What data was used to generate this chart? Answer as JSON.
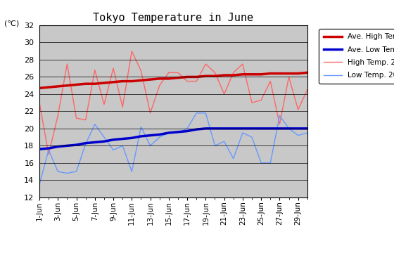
{
  "title": "Tokyo Temperature in June",
  "ylabel": "(℃)",
  "ylim": [
    12,
    32
  ],
  "yticks": [
    12,
    14,
    16,
    18,
    20,
    22,
    24,
    26,
    28,
    30,
    32
  ],
  "background_color": "#c8c8c8",
  "days": [
    1,
    2,
    3,
    4,
    5,
    6,
    7,
    8,
    9,
    10,
    11,
    12,
    13,
    14,
    15,
    16,
    17,
    18,
    19,
    20,
    21,
    22,
    23,
    24,
    25,
    26,
    27,
    28,
    29,
    30
  ],
  "xtick_labels": [
    "1-Jun",
    "3-Jun",
    "5-Jun",
    "7-Jun",
    "9-Jun",
    "11-Jun",
    "13-Jun",
    "15-Jun",
    "17-Jun",
    "19-Jun",
    "21-Jun",
    "23-Jun",
    "25-Jun",
    "27-Jun",
    "29-Jun"
  ],
  "xtick_positions": [
    1,
    3,
    5,
    7,
    9,
    11,
    13,
    15,
    17,
    19,
    21,
    23,
    25,
    27,
    29
  ],
  "all_xtick_positions": [
    1,
    2,
    3,
    4,
    5,
    6,
    7,
    8,
    9,
    10,
    11,
    12,
    13,
    14,
    15,
    16,
    17,
    18,
    19,
    20,
    21,
    22,
    23,
    24,
    25,
    26,
    27,
    28,
    29,
    30
  ],
  "ave_high": [
    24.7,
    24.8,
    24.9,
    25.0,
    25.1,
    25.2,
    25.2,
    25.3,
    25.4,
    25.5,
    25.5,
    25.6,
    25.7,
    25.8,
    25.8,
    25.9,
    26.0,
    26.0,
    26.1,
    26.1,
    26.2,
    26.2,
    26.3,
    26.3,
    26.3,
    26.4,
    26.4,
    26.4,
    26.4,
    26.5
  ],
  "ave_low": [
    17.6,
    17.7,
    17.9,
    18.0,
    18.1,
    18.3,
    18.4,
    18.5,
    18.7,
    18.8,
    18.9,
    19.1,
    19.2,
    19.3,
    19.5,
    19.6,
    19.7,
    19.9,
    20.0,
    20.0,
    20.0,
    20.0,
    20.0,
    20.0,
    20.0,
    20.0,
    20.0,
    20.0,
    20.0,
    20.0
  ],
  "high_2008": [
    23.0,
    17.0,
    21.5,
    27.5,
    21.2,
    21.0,
    26.8,
    22.8,
    27.0,
    22.5,
    29.0,
    26.7,
    21.8,
    25.0,
    26.5,
    26.5,
    25.5,
    25.5,
    27.5,
    26.5,
    24.0,
    26.5,
    27.5,
    23.0,
    23.3,
    25.5,
    20.5,
    26.0,
    22.2,
    24.5
  ],
  "low_2008": [
    13.5,
    17.5,
    15.0,
    14.8,
    15.0,
    18.2,
    20.5,
    19.0,
    17.5,
    18.0,
    15.0,
    20.2,
    18.0,
    19.0,
    19.5,
    19.5,
    20.0,
    21.8,
    21.8,
    18.0,
    18.5,
    16.5,
    19.5,
    19.0,
    16.0,
    16.0,
    21.5,
    20.0,
    19.2,
    19.5
  ],
  "ave_high_color": "#cc0000",
  "ave_low_color": "#0000cc",
  "high_2008_color": "#ff6666",
  "low_2008_color": "#6699ff",
  "ave_high_lw": 2.5,
  "ave_low_lw": 2.5,
  "data_lw": 1.0,
  "fig_width": 5.6,
  "fig_height": 3.6,
  "dpi": 100
}
